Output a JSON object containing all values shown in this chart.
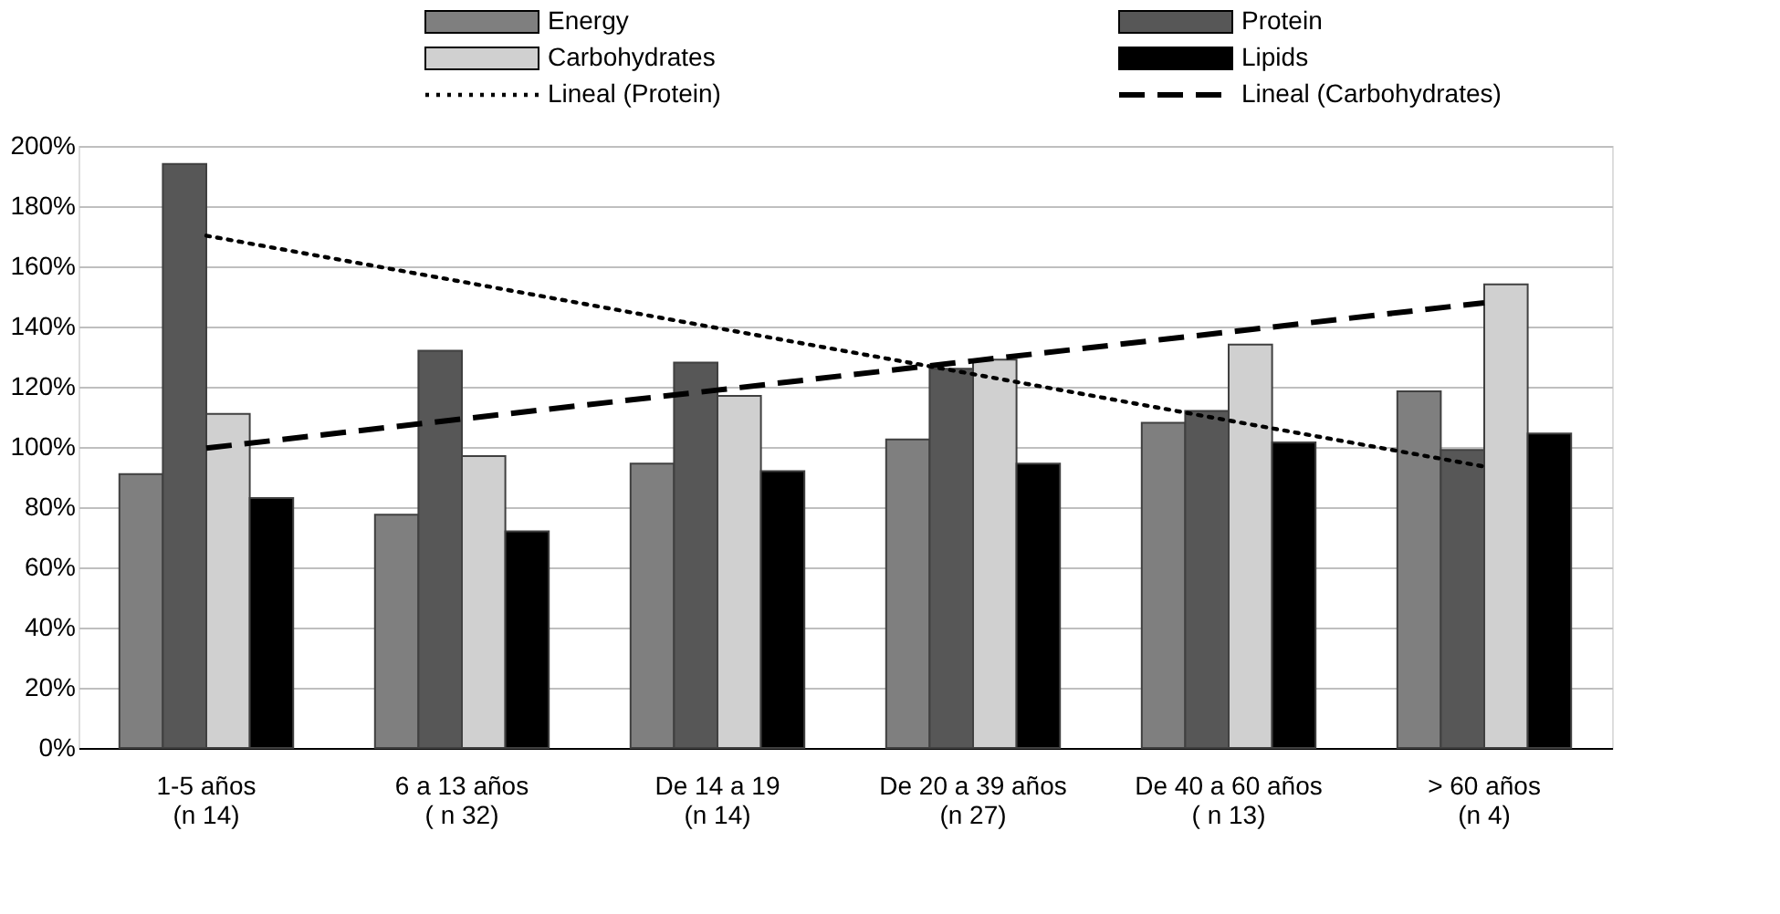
{
  "chart_data": {
    "type": "bar",
    "categories": [
      "1-5 años\n(n 14)",
      "6 a 13 años\n( n 32)",
      "De 14 a 19\n(n 14)",
      "De 20 a 39 años\n(n 27)",
      "De 40 a 60 años\n( n 13)",
      "> 60 años\n(n 4)"
    ],
    "series": [
      {
        "name": "Energy",
        "color": "#7f7f7f",
        "values": [
          91,
          77.5,
          94.5,
          102.5,
          108,
          118.5
        ]
      },
      {
        "name": "Protein",
        "color": "#575757",
        "values": [
          194,
          132,
          128,
          126,
          112,
          99
        ]
      },
      {
        "name": "Carbohydrates",
        "color": "#d0d0d0",
        "values": [
          111,
          97,
          117,
          129,
          134,
          154
        ]
      },
      {
        "name": "Lipids",
        "color": "#000000",
        "values": [
          83,
          72,
          92,
          94.5,
          101.5,
          104.5
        ]
      },
      {
        "name": "Lineal (Protein)",
        "type": "line",
        "line_style": "dotted",
        "color": "#000000",
        "x": [
          "1-5 años\n(n 14)",
          "6 a 13 años\n( n 32)",
          "De 14 a 19\n(n 14)",
          "De 20 a 39 años\n(n 27)",
          "De 40 a 60 años\n( n 13)",
          "> 60 años\n(n 4)"
        ],
        "values": [
          170.2,
          154.9,
          139.5,
          124.2,
          108.8,
          93.5
        ]
      },
      {
        "name": "Lineal (Carbohydrates)",
        "type": "line",
        "line_style": "dashed",
        "color": "#000000",
        "x": [
          "1-5 años\n(n 14)",
          "6 a 13 años\n( n 32)",
          "De 14 a 19\n(n 14)",
          "De 20 a 39 años\n(n 27)",
          "De 40 a 60 años\n( n 13)",
          "> 60 años\n(n 4)"
        ],
        "values": [
          99.6,
          109.3,
          118.9,
          128.6,
          138.2,
          147.9
        ]
      }
    ],
    "ylim": [
      0,
      200
    ],
    "yticks": [
      {
        "value": 0,
        "label": "0%"
      },
      {
        "value": 20,
        "label": "20%"
      },
      {
        "value": 40,
        "label": "40%"
      },
      {
        "value": 60,
        "label": "60%"
      },
      {
        "value": 80,
        "label": "80%"
      },
      {
        "value": 100,
        "label": "100%"
      },
      {
        "value": 120,
        "label": "120%"
      },
      {
        "value": 140,
        "label": "140%"
      },
      {
        "value": 160,
        "label": "160%"
      },
      {
        "value": 180,
        "label": "180%"
      },
      {
        "value": 200,
        "label": "200%"
      }
    ],
    "grid": "y",
    "legend": "top"
  }
}
